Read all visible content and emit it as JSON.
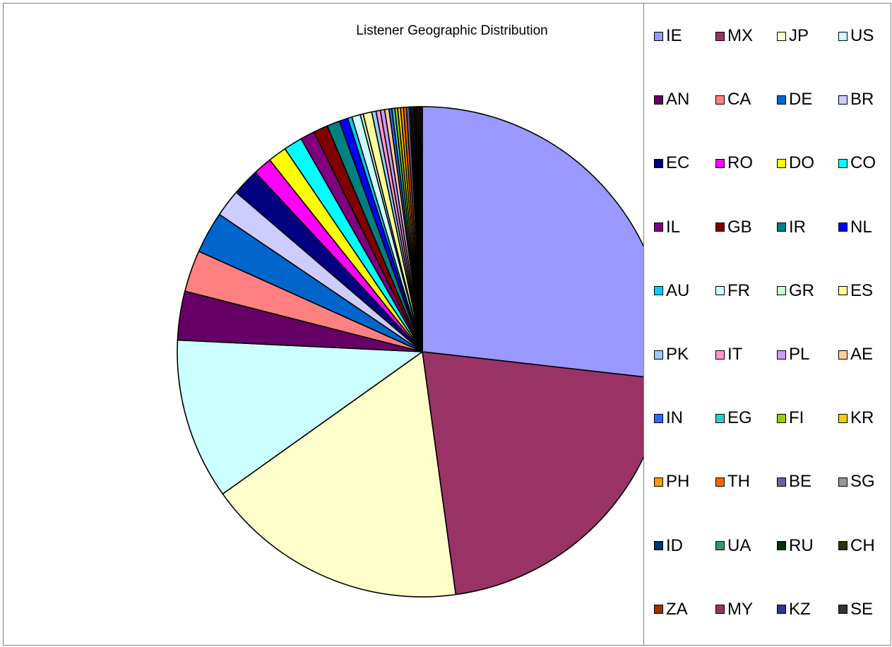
{
  "chart_data": {
    "type": "pie",
    "title": "Listener Geographic Distribution",
    "legend_position": "right",
    "slices": [
      {
        "label": "IE",
        "value": 28.3,
        "color": "#9999ff"
      },
      {
        "label": "MX",
        "value": 22.2,
        "color": "#993366"
      },
      {
        "label": "JP",
        "value": 18.3,
        "color": "#ffffcc"
      },
      {
        "label": "US",
        "value": 11.2,
        "color": "#ccffff"
      },
      {
        "label": "AN",
        "value": 3.4,
        "color": "#660066"
      },
      {
        "label": "CA",
        "value": 2.9,
        "color": "#ff8080"
      },
      {
        "label": "DE",
        "value": 2.9,
        "color": "#0066cc"
      },
      {
        "label": "BR",
        "value": 1.9,
        "color": "#ccccff"
      },
      {
        "label": "EC",
        "value": 1.9,
        "color": "#000080"
      },
      {
        "label": "RO",
        "value": 1.3,
        "color": "#ff00ff"
      },
      {
        "label": "DO",
        "value": 1.3,
        "color": "#ffff00"
      },
      {
        "label": "CO",
        "value": 1.3,
        "color": "#00ffff"
      },
      {
        "label": "IL",
        "value": 1.0,
        "color": "#800080"
      },
      {
        "label": "GB",
        "value": 1.0,
        "color": "#800000"
      },
      {
        "label": "IR",
        "value": 0.9,
        "color": "#008080"
      },
      {
        "label": "NL",
        "value": 0.6,
        "color": "#0000ff"
      },
      {
        "label": "AU",
        "value": 0.3,
        "color": "#00ccff"
      },
      {
        "label": "FR",
        "value": 0.6,
        "color": "#ccffff"
      },
      {
        "label": "GR",
        "value": 0.2,
        "color": "#ccffcc"
      },
      {
        "label": "ES",
        "value": 0.6,
        "color": "#ffff99"
      },
      {
        "label": "PK",
        "value": 0.3,
        "color": "#99ccff"
      },
      {
        "label": "IT",
        "value": 0.3,
        "color": "#ff99cc"
      },
      {
        "label": "PL",
        "value": 0.3,
        "color": "#cc99ff"
      },
      {
        "label": "AE",
        "value": 0.3,
        "color": "#ffcc99"
      },
      {
        "label": "IN",
        "value": 0.2,
        "color": "#3366ff"
      },
      {
        "label": "EG",
        "value": 0.2,
        "color": "#33cccc"
      },
      {
        "label": "FI",
        "value": 0.2,
        "color": "#99cc00"
      },
      {
        "label": "KR",
        "value": 0.2,
        "color": "#ffcc00"
      },
      {
        "label": "PH",
        "value": 0.2,
        "color": "#ff9900"
      },
      {
        "label": "TH",
        "value": 0.2,
        "color": "#ff6600"
      },
      {
        "label": "BE",
        "value": 0.2,
        "color": "#666699"
      },
      {
        "label": "SG",
        "value": 0.1,
        "color": "#969696"
      },
      {
        "label": "ID",
        "value": 0.1,
        "color": "#003366"
      },
      {
        "label": "UA",
        "value": 0.1,
        "color": "#339966"
      },
      {
        "label": "RU",
        "value": 0.1,
        "color": "#003300"
      },
      {
        "label": "CH",
        "value": 0.1,
        "color": "#333300"
      },
      {
        "label": "ZA",
        "value": 0.1,
        "color": "#993300"
      },
      {
        "label": "MY",
        "value": 0.1,
        "color": "#993366"
      },
      {
        "label": "KZ",
        "value": 0.1,
        "color": "#333399"
      },
      {
        "label": "SE",
        "value": 0.1,
        "color": "#333333"
      }
    ]
  }
}
